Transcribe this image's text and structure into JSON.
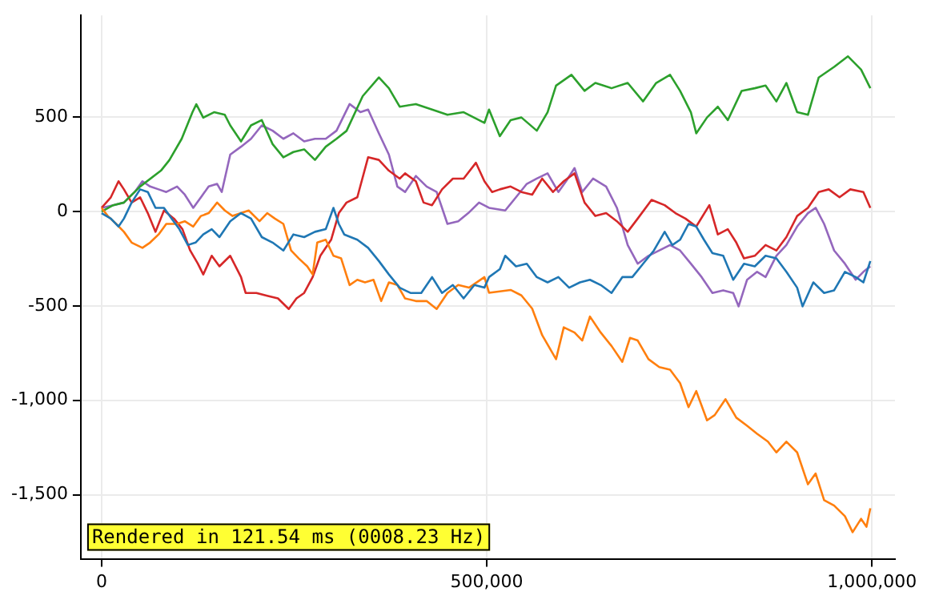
{
  "chart_data": {
    "type": "line",
    "xlim": [
      -27000,
      1030000
    ],
    "ylim": [
      -1840,
      1040
    ],
    "xticks": [
      0,
      {
        "value": 500000,
        "label": "500,000"
      },
      {
        "value": 1000000,
        "label": "1,000,000"
      }
    ],
    "yticks": [
      {
        "value": -1500,
        "label": "-1,500"
      },
      {
        "value": -1000,
        "label": "-1,000"
      },
      -500,
      0,
      500
    ],
    "grid": true,
    "marker": "none",
    "line_style": "solid",
    "annotations": [
      "Rendered in 121.54 ms (0008.23 Hz)"
    ],
    "series": [
      {
        "color": "#1f77b4",
        "x": [
          0,
          12000,
          22000,
          29000,
          39000,
          50000,
          60000,
          70000,
          81000,
          91000,
          101000,
          112000,
          122000,
          132000,
          143000,
          153000,
          167000,
          181000,
          194000,
          208000,
          222000,
          236000,
          249000,
          263000,
          277000,
          291000,
          301000,
          308000,
          315000,
          332000,
          346000,
          360000,
          373000,
          387000,
          401000,
          415000,
          429000,
          442000,
          456000,
          470000,
          484000,
          497000,
          503000,
          517000,
          524000,
          538000,
          552000,
          565000,
          579000,
          593000,
          607000,
          621000,
          634000,
          648000,
          662000,
          676000,
          689000,
          703000,
          717000,
          731000,
          741000,
          751000,
          762000,
          772000,
          782000,
          793000,
          807000,
          820000,
          834000,
          848000,
          862000,
          876000,
          889000,
          903000,
          910000,
          924000,
          938000,
          951000,
          965000,
          979000,
          989000,
          998000
        ],
        "values": [
          -8,
          -37,
          -79,
          -37,
          48,
          118,
          104,
          20,
          20,
          -37,
          -93,
          -177,
          -164,
          -121,
          -93,
          -135,
          -51,
          -8,
          -37,
          -135,
          -164,
          -206,
          -121,
          -135,
          -107,
          -93,
          20,
          -65,
          -121,
          -149,
          -192,
          -262,
          -333,
          -403,
          -431,
          -431,
          -347,
          -431,
          -389,
          -460,
          -389,
          -403,
          -347,
          -305,
          -234,
          -290,
          -276,
          -347,
          -375,
          -347,
          -403,
          -375,
          -361,
          -389,
          -431,
          -347,
          -347,
          -276,
          -206,
          -107,
          -177,
          -149,
          -65,
          -79,
          -149,
          -220,
          -234,
          -361,
          -276,
          -290,
          -234,
          -248,
          -319,
          -403,
          -502,
          -375,
          -431,
          -417,
          -319,
          -347,
          -375,
          -262
        ]
      },
      {
        "color": "#ff7f0e",
        "x": [
          0,
          8000,
          19000,
          29000,
          39000,
          53000,
          63000,
          74000,
          84000,
          98000,
          108000,
          119000,
          129000,
          139000,
          150000,
          160000,
          170000,
          181000,
          191000,
          205000,
          215000,
          225000,
          236000,
          246000,
          256000,
          267000,
          274000,
          280000,
          291000,
          301000,
          311000,
          322000,
          332000,
          342000,
          353000,
          363000,
          373000,
          384000,
          394000,
          408000,
          422000,
          435000,
          449000,
          463000,
          477000,
          497000,
          503000,
          531000,
          545000,
          559000,
          572000,
          590000,
          600000,
          614000,
          624000,
          634000,
          648000,
          662000,
          676000,
          686000,
          696000,
          710000,
          724000,
          738000,
          751000,
          762000,
          772000,
          786000,
          796000,
          810000,
          824000,
          838000,
          851000,
          865000,
          876000,
          889000,
          903000,
          917000,
          927000,
          938000,
          951000,
          965000,
          975000,
          986000,
          993000,
          998000
        ],
        "values": [
          20,
          -23,
          -65,
          -107,
          -164,
          -192,
          -164,
          -121,
          -65,
          -65,
          -51,
          -79,
          -23,
          -8,
          48,
          6,
          -23,
          -8,
          6,
          -51,
          -8,
          -37,
          -65,
          -206,
          -248,
          -290,
          -333,
          -164,
          -149,
          -234,
          -248,
          -389,
          -361,
          -375,
          -361,
          -474,
          -375,
          -389,
          -460,
          -474,
          -474,
          -516,
          -431,
          -389,
          -403,
          -347,
          -430,
          -415,
          -444,
          -514,
          -655,
          -782,
          -613,
          -641,
          -683,
          -556,
          -641,
          -712,
          -796,
          -669,
          -683,
          -782,
          -824,
          -838,
          -909,
          -1036,
          -951,
          -1106,
          -1078,
          -994,
          -1092,
          -1135,
          -1177,
          -1219,
          -1276,
          -1219,
          -1276,
          -1445,
          -1388,
          -1529,
          -1558,
          -1614,
          -1699,
          -1628,
          -1670,
          -1572
        ]
      },
      {
        "color": "#2ca02c",
        "x": [
          0,
          15000,
          29000,
          50000,
          77000,
          88000,
          104000,
          118000,
          123000,
          132000,
          146000,
          160000,
          167000,
          181000,
          194000,
          208000,
          222000,
          236000,
          249000,
          263000,
          277000,
          291000,
          305000,
          318000,
          339000,
          360000,
          373000,
          387000,
          408000,
          429000,
          449000,
          470000,
          497000,
          503000,
          517000,
          531000,
          545000,
          565000,
          579000,
          590000,
          610000,
          627000,
          641000,
          662000,
          683000,
          703000,
          720000,
          738000,
          751000,
          765000,
          772000,
          786000,
          800000,
          813000,
          831000,
          848000,
          862000,
          876000,
          889000,
          903000,
          917000,
          931000,
          951000,
          969000,
          986000,
          998000
        ],
        "values": [
          0,
          34,
          48,
          133,
          217,
          273,
          386,
          527,
          569,
          498,
          527,
          513,
          457,
          372,
          457,
          485,
          358,
          288,
          316,
          330,
          274,
          344,
          386,
          428,
          612,
          711,
          654,
          556,
          570,
          541,
          513,
          527,
          470,
          541,
          400,
          485,
          499,
          429,
          527,
          668,
          725,
          640,
          682,
          654,
          682,
          584,
          682,
          725,
          640,
          527,
          415,
          499,
          556,
          485,
          640,
          654,
          668,
          584,
          682,
          527,
          513,
          711,
          767,
          823,
          753,
          654
        ]
      },
      {
        "color": "#d62728",
        "x": [
          0,
          12000,
          22000,
          29000,
          39000,
          50000,
          60000,
          70000,
          81000,
          94000,
          105000,
          115000,
          125000,
          132000,
          143000,
          153000,
          167000,
          181000,
          187000,
          201000,
          215000,
          229000,
          243000,
          253000,
          263000,
          274000,
          284000,
          298000,
          308000,
          318000,
          332000,
          346000,
          360000,
          373000,
          387000,
          394000,
          408000,
          418000,
          429000,
          442000,
          456000,
          470000,
          486000,
          497000,
          507000,
          517000,
          531000,
          545000,
          559000,
          572000,
          586000,
          600000,
          614000,
          627000,
          641000,
          655000,
          669000,
          683000,
          696000,
          714000,
          731000,
          745000,
          758000,
          772000,
          789000,
          800000,
          813000,
          824000,
          834000,
          848000,
          862000,
          876000,
          889000,
          903000,
          917000,
          931000,
          944000,
          958000,
          972000,
          989000,
          998000
        ],
        "values": [
          20,
          76,
          161,
          118,
          48,
          76,
          -8,
          -107,
          6,
          -37,
          -93,
          -206,
          -276,
          -333,
          -234,
          -290,
          -234,
          -347,
          -431,
          -431,
          -446,
          -460,
          -516,
          -460,
          -431,
          -347,
          -234,
          -149,
          -8,
          48,
          76,
          288,
          274,
          217,
          175,
          203,
          161,
          48,
          34,
          118,
          175,
          175,
          259,
          161,
          104,
          118,
          133,
          104,
          90,
          175,
          104,
          161,
          203,
          48,
          -23,
          -8,
          -51,
          -107,
          -37,
          62,
          34,
          -8,
          -37,
          -79,
          34,
          -121,
          -93,
          -164,
          -248,
          -234,
          -177,
          -206,
          -135,
          -23,
          20,
          104,
          118,
          76,
          118,
          104,
          20
        ]
      },
      {
        "color": "#9467bd",
        "x": [
          0,
          15000,
          29000,
          43000,
          53000,
          63000,
          74000,
          84000,
          98000,
          108000,
          119000,
          129000,
          139000,
          150000,
          156000,
          167000,
          181000,
          194000,
          208000,
          222000,
          236000,
          249000,
          263000,
          277000,
          291000,
          305000,
          322000,
          336000,
          346000,
          360000,
          373000,
          384000,
          394000,
          408000,
          422000,
          435000,
          449000,
          463000,
          476000,
          490000,
          503000,
          524000,
          538000,
          552000,
          565000,
          579000,
          593000,
          603000,
          614000,
          624000,
          638000,
          655000,
          669000,
          683000,
          696000,
          710000,
          724000,
          738000,
          751000,
          765000,
          779000,
          793000,
          807000,
          820000,
          827000,
          838000,
          851000,
          862000,
          876000,
          889000,
          903000,
          917000,
          927000,
          938000,
          951000,
          965000,
          979000,
          989000,
          998000
        ],
        "values": [
          20,
          34,
          48,
          104,
          161,
          133,
          118,
          104,
          133,
          90,
          20,
          76,
          133,
          147,
          104,
          302,
          344,
          386,
          457,
          429,
          386,
          415,
          372,
          386,
          386,
          429,
          570,
          527,
          541,
          415,
          302,
          133,
          104,
          189,
          133,
          104,
          -65,
          -51,
          -8,
          48,
          20,
          6,
          76,
          147,
          175,
          203,
          104,
          161,
          231,
          104,
          175,
          133,
          20,
          -177,
          -276,
          -234,
          -206,
          -177,
          -206,
          -276,
          -347,
          -431,
          -417,
          -431,
          -502,
          -361,
          -319,
          -347,
          -234,
          -177,
          -79,
          -8,
          20,
          -65,
          -206,
          -276,
          -361,
          -319,
          -290
        ]
      }
    ]
  }
}
